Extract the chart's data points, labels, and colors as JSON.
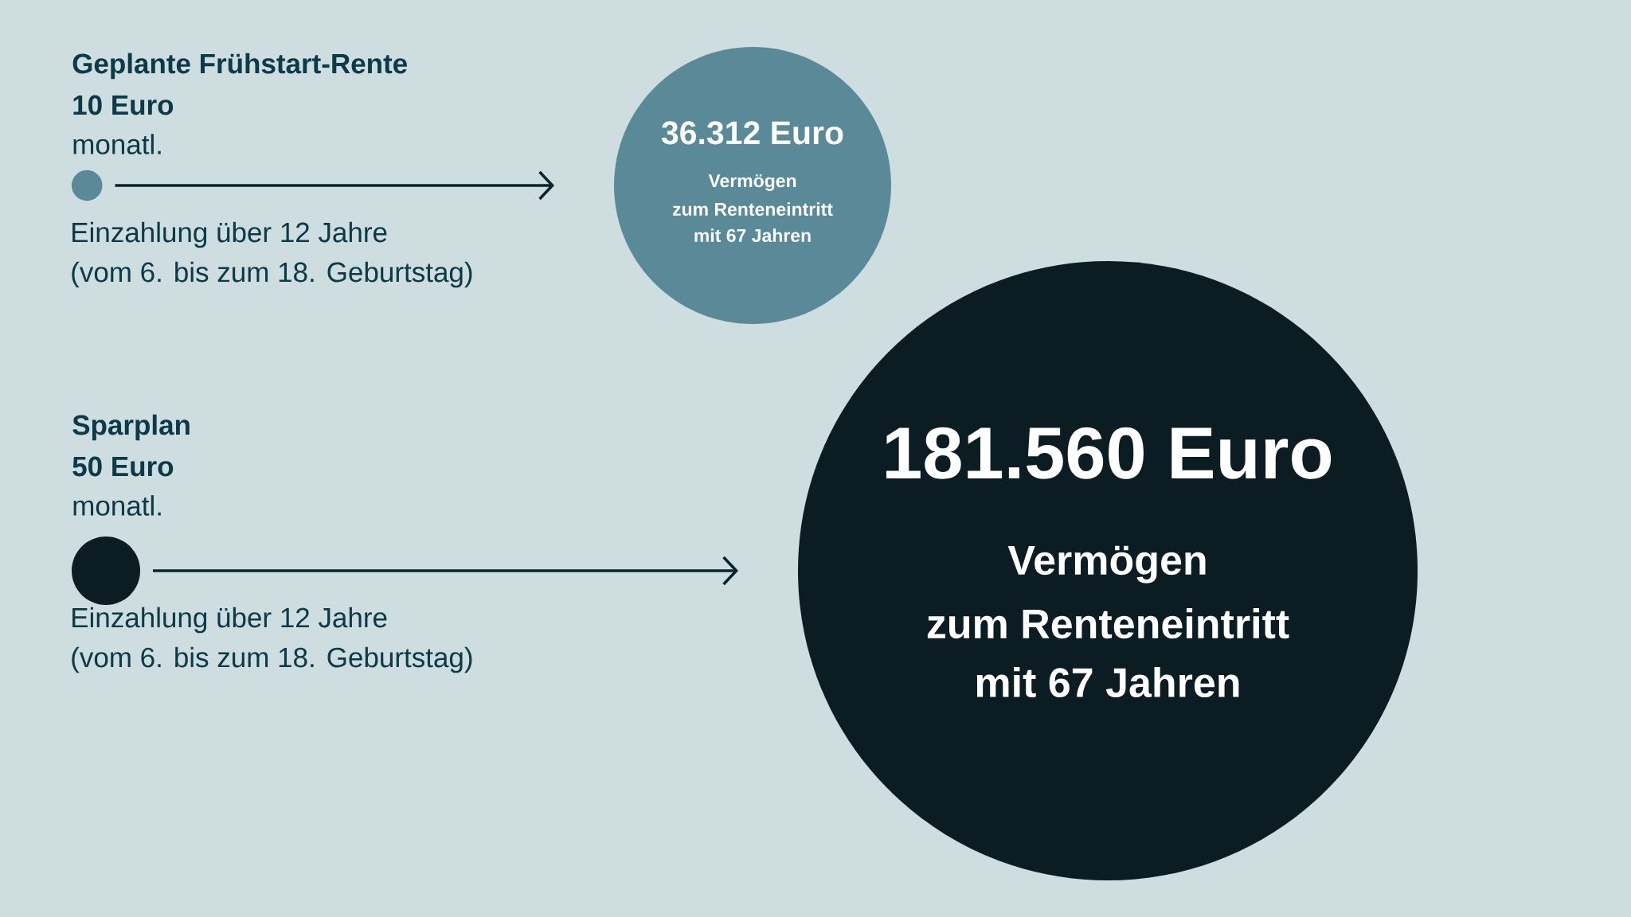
{
  "chart_data": {
    "type": "other",
    "categories": [
      "Geplante Frühstart-Rente",
      "Sparplan"
    ],
    "series": [
      {
        "colors": [
          "#5a8a98",
          "#0b1c22"
        ],
        "values": [
          10,
          50
        ],
        "value_labels": [
          "10 Euro",
          "50 Euro"
        ]
      },
      {
        "colors": [
          "#5a8a98",
          "#0b1c22"
        ],
        "values": [
          36312,
          181560
        ],
        "value_labels": [
          "36.312 Euro",
          "181.560 Euro"
        ]
      }
    ],
    "annotations": [
      "monatl.",
      "Einzahlung über 12 Jahre",
      "(vom 6. bis zum 18. Geburtstag)",
      "Vermögen",
      "zum Renteneintritt",
      "mit 67 Jahren",
      "monatl.",
      "Einzahlung über 12 Jahre",
      "(vom 6. bis zum 18. Geburtstag)",
      "Vermögen",
      "zum Renteneintritt",
      "mit 67 Jahren"
    ]
  }
}
